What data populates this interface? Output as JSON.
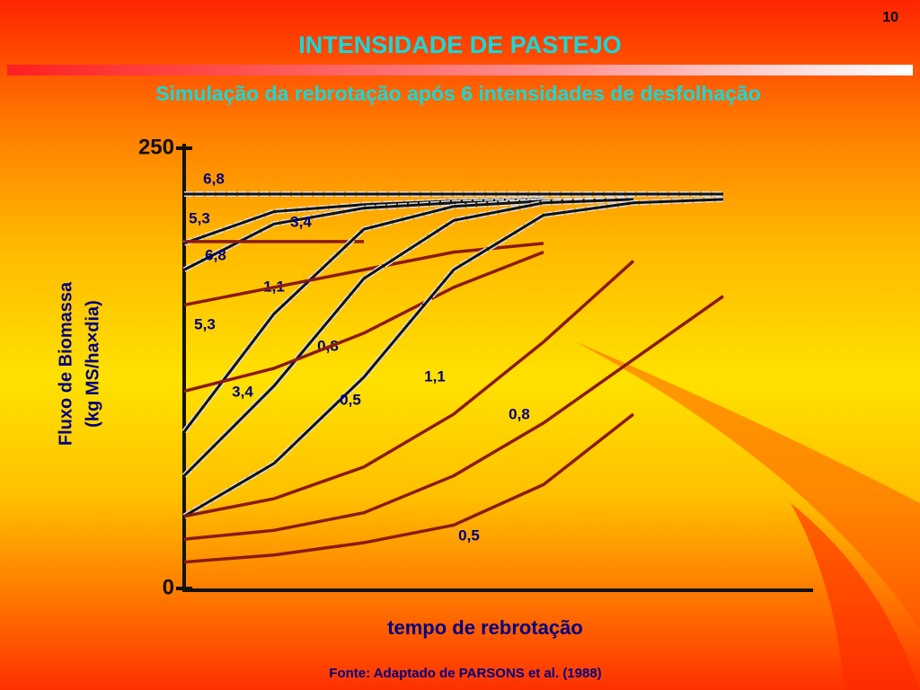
{
  "page_number": "10",
  "chart_data": {
    "type": "line",
    "title": "INTENSIDADE DE PASTEJO",
    "subtitle": "Simulação da rebrotação após 6 intensidades de desfolhação",
    "y_label": [
      "Fluxo de Biomassa",
      "(kg MS/ha×dia)"
    ],
    "x_label": "tempo de rebrotação",
    "source": "Fonte: Adaptado de PARSONS et al. (1988)",
    "categories": [
      null,
      null,
      null,
      null,
      null,
      null,
      null,
      null
    ],
    "ylim": [
      0,
      250
    ],
    "yticks": [
      0,
      250
    ],
    "series": [
      {
        "name": "6,8",
        "color": "#111111",
        "values": [
          224,
          224,
          224,
          224,
          224,
          224,
          224,
          null
        ]
      },
      {
        "name": "5,3",
        "color": "#111111",
        "values": [
          196,
          214,
          218,
          220,
          221,
          null,
          null,
          null
        ]
      },
      {
        "name": "3,4",
        "color": "#111111",
        "values": [
          181,
          207,
          216,
          219,
          220,
          null,
          null,
          null
        ]
      },
      {
        "name": "6,8",
        "color": "#8b1a1a",
        "values": [
          197,
          197,
          197,
          null,
          null,
          null,
          null,
          null
        ]
      },
      {
        "name": "1,1",
        "color": "#111111",
        "values": [
          89,
          156,
          204,
          217,
          220,
          221,
          null,
          null
        ]
      },
      {
        "name": "5,3",
        "color": "#8b1a1a",
        "values": [
          161,
          171,
          181,
          191,
          196,
          null,
          null,
          null
        ]
      },
      {
        "name": "0,8",
        "color": "#111111",
        "values": [
          64,
          115,
          176,
          209,
          219,
          221,
          null,
          null
        ]
      },
      {
        "name": "3,4",
        "color": "#8b1a1a",
        "values": [
          112,
          125,
          145,
          171,
          191,
          null,
          null,
          null
        ]
      },
      {
        "name": "0,5",
        "color": "#111111",
        "values": [
          41,
          71,
          120,
          181,
          212,
          219,
          221,
          null
        ]
      },
      {
        "name": "1,1",
        "color": "#8b1a1a",
        "values": [
          41,
          51,
          69,
          99,
          140,
          186,
          null,
          null
        ]
      },
      {
        "name": "0,8",
        "color": "#8b1a1a",
        "values": [
          28,
          33,
          43,
          64,
          94,
          130,
          166,
          null
        ]
      },
      {
        "name": "0,5",
        "color": "#8b1a1a",
        "values": [
          15,
          19,
          26,
          36,
          59,
          99,
          null,
          null
        ]
      }
    ]
  }
}
